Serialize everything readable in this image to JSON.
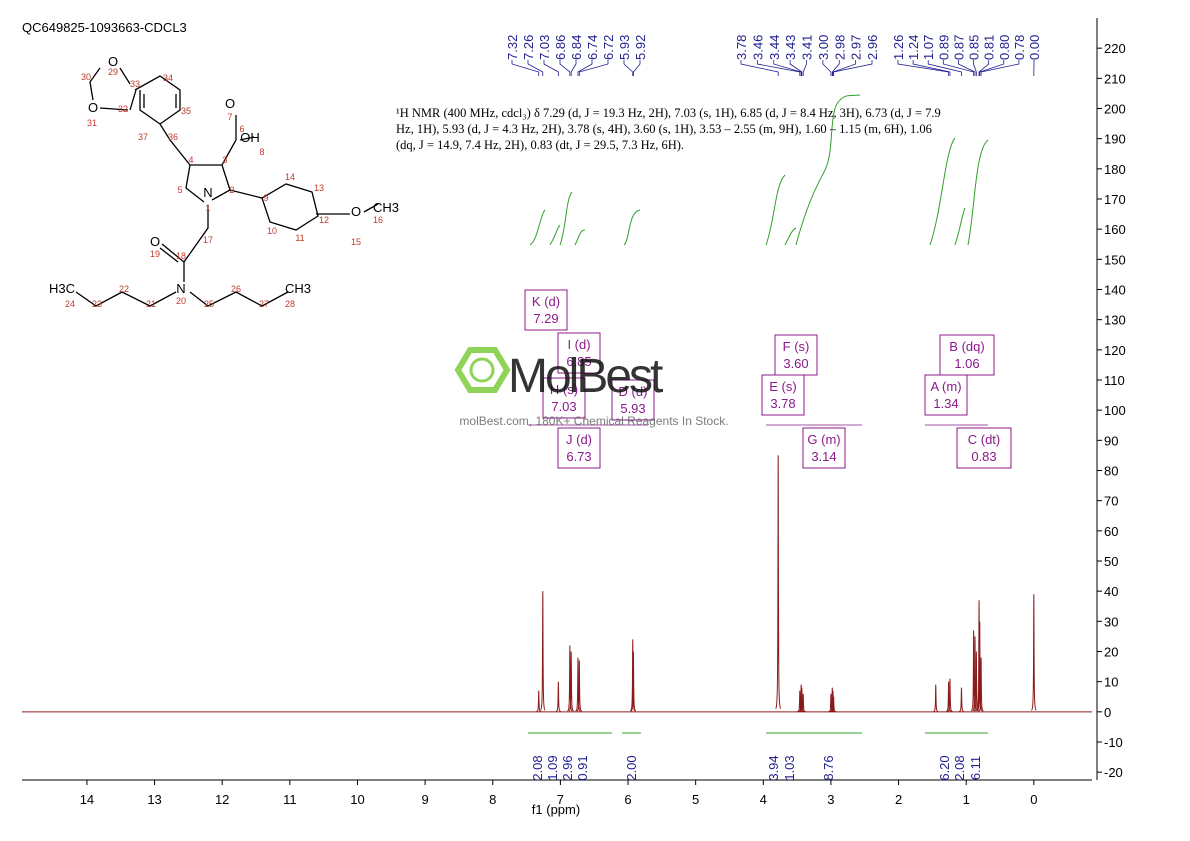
{
  "chart_data": {
    "type": "nmr",
    "title": "QC649825-1093663-CDCL3",
    "xlabel": "f1 (ppm)",
    "xlim": [
      14.96,
      -0.86
    ],
    "xticks": [
      14,
      13,
      12,
      11,
      10,
      9,
      8,
      7,
      6,
      5,
      4,
      3,
      2,
      1,
      0
    ],
    "ylim": [
      -22.6,
      230
    ],
    "yticks": [
      220,
      210,
      200,
      190,
      180,
      170,
      160,
      150,
      140,
      130,
      120,
      110,
      100,
      90,
      80,
      70,
      60,
      50,
      40,
      30,
      20,
      10,
      0,
      -10,
      -20
    ],
    "color": "#8b1a1a",
    "peaks": {
      "x": [
        7.32,
        7.26,
        7.03,
        6.86,
        6.84,
        6.74,
        6.72,
        5.93,
        5.92,
        3.78,
        3.46,
        3.44,
        3.43,
        3.41,
        3.0,
        2.98,
        2.97,
        2.96,
        1.45,
        1.26,
        1.24,
        1.07,
        0.89,
        0.87,
        0.85,
        0.81,
        0.8,
        0.78,
        0.0
      ],
      "values": [
        7,
        40,
        10,
        22,
        20,
        18,
        17,
        24,
        20,
        85,
        7,
        9,
        8,
        6,
        6,
        8,
        7,
        5,
        9,
        10,
        11,
        8,
        27,
        25,
        20,
        37,
        30,
        18,
        39
      ]
    },
    "peak_labels": [
      [
        "7.32",
        "7.26",
        "7.03",
        "6.86",
        "6.84",
        "6.74",
        "6.72",
        "5.93",
        "5.92"
      ],
      [
        "3.78",
        "3.46",
        "3.44",
        "3.43",
        "3.41",
        "3.00",
        "2.98",
        "2.97",
        "2.96"
      ],
      [
        "1.26",
        "1.24",
        "1.07",
        "0.89",
        "0.87",
        "0.85",
        "0.81",
        "0.80",
        "0.78",
        "0.00"
      ]
    ],
    "description": "¹H NMR (400 MHz, cdcl₃) δ 7.29 (d, J = 19.3 Hz, 2H), 7.03 (s, 1H), 6.85 (d, J = 8.4 Hz, 3H), 6.73 (d, J = 7.9 Hz, 1H), 5.93 (d, J = 4.3 Hz, 2H), 3.78 (s, 4H), 3.60 (s, 1H), 3.53 – 2.55 (m, 9H), 1.60 – 1.15 (m, 6H), 1.06 (dq, J = 14.9, 7.4 Hz, 2H), 0.83 (dt, J = 29.5, 7.3 Hz, 6H).",
    "multiplets": [
      {
        "name": "K (d)",
        "shift": "7.29"
      },
      {
        "name": "I (d)",
        "shift": "6.85"
      },
      {
        "name": "H (s)",
        "shift": "7.03"
      },
      {
        "name": "D (d)",
        "shift": "5.93"
      },
      {
        "name": "J (d)",
        "shift": "6.73"
      },
      {
        "name": "F (s)",
        "shift": "3.60"
      },
      {
        "name": "E (s)",
        "shift": "3.78"
      },
      {
        "name": "G (m)",
        "shift": "3.14"
      },
      {
        "name": "B (dq)",
        "shift": "1.06"
      },
      {
        "name": "A (m)",
        "shift": "1.34"
      },
      {
        "name": "C (dt)",
        "shift": "0.83"
      }
    ],
    "integrals": [
      "2.08",
      "1.09",
      "2.96",
      "0.91",
      "2.00",
      "3.94",
      "1.03",
      "8.76",
      "6.20",
      "2.08",
      "6.11"
    ],
    "watermark": {
      "logo": "MolBest",
      "text": "molBest.com, 180K+ Chemical Reagents In Stock."
    },
    "structure": {
      "atoms": [
        "O",
        "O",
        "O",
        "OH",
        "N",
        "O",
        "O",
        "CH3",
        "H3C",
        "N",
        "CH3"
      ],
      "numbers": [
        "30",
        "29",
        "33",
        "34",
        "35",
        "32",
        "31",
        "37",
        "36",
        "4",
        "3",
        "6",
        "7",
        "8",
        "5",
        "2",
        "1",
        "9",
        "14",
        "13",
        "12",
        "10",
        "11",
        "16",
        "15",
        "17",
        "18",
        "19",
        "20",
        "21",
        "22",
        "23",
        "24",
        "25",
        "26",
        "27",
        "28"
      ]
    }
  }
}
